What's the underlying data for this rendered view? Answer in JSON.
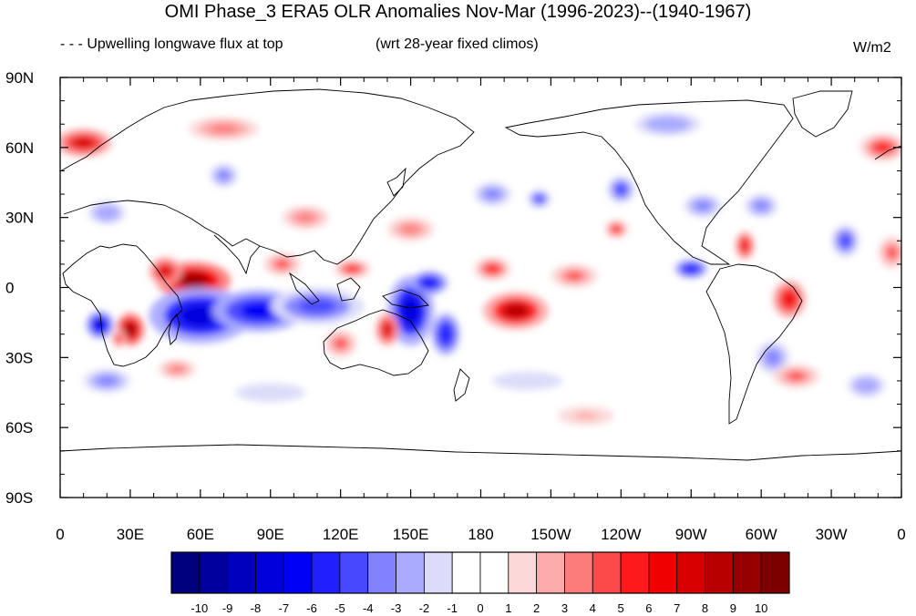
{
  "title": "OMI Phase_3 ERA5 OLR Anomalies Nov-Mar (1996-2023)--(1940-1967)",
  "subtitle_left": "- - - Upwelling longwave flux at top",
  "subtitle_mid": "(wrt 28-year fixed climos)",
  "units": "W/m2",
  "map": {
    "projection": "cylindrical equidistant",
    "lon_range": [
      0,
      360
    ],
    "lat_range": [
      -90,
      90
    ],
    "lat_ticks": [
      {
        "value": 90,
        "label": "90N"
      },
      {
        "value": 60,
        "label": "60N"
      },
      {
        "value": 30,
        "label": "30N"
      },
      {
        "value": 0,
        "label": "0"
      },
      {
        "value": -30,
        "label": "30S"
      },
      {
        "value": -60,
        "label": "60S"
      },
      {
        "value": -90,
        "label": "90S"
      }
    ],
    "lon_ticks": [
      {
        "value": 0,
        "label": "0"
      },
      {
        "value": 30,
        "label": "30E"
      },
      {
        "value": 60,
        "label": "60E"
      },
      {
        "value": 90,
        "label": "90E"
      },
      {
        "value": 120,
        "label": "120E"
      },
      {
        "value": 150,
        "label": "150E"
      },
      {
        "value": 180,
        "label": "180"
      },
      {
        "value": 210,
        "label": "150W"
      },
      {
        "value": 240,
        "label": "120W"
      },
      {
        "value": 270,
        "label": "90W"
      },
      {
        "value": 300,
        "label": "60W"
      },
      {
        "value": 330,
        "label": "30W"
      },
      {
        "value": 360,
        "label": "0"
      }
    ],
    "anomaly_blobs": [
      {
        "lon": 57,
        "lat": 3,
        "rx": 16,
        "ry": 8,
        "value": 9
      },
      {
        "lon": 45,
        "lat": 7,
        "rx": 7,
        "ry": 6,
        "value": 7
      },
      {
        "lon": 30,
        "lat": -18,
        "rx": 6,
        "ry": 7,
        "value": 9
      },
      {
        "lon": 25,
        "lat": -22,
        "rx": 3,
        "ry": 4,
        "value": 5
      },
      {
        "lon": 60,
        "lat": -12,
        "rx": 22,
        "ry": 12,
        "value": -8
      },
      {
        "lon": 85,
        "lat": -10,
        "rx": 20,
        "ry": 9,
        "value": -7
      },
      {
        "lon": 110,
        "lat": -8,
        "rx": 20,
        "ry": 8,
        "value": -5
      },
      {
        "lon": 17,
        "lat": -16,
        "rx": 6,
        "ry": 6,
        "value": -8
      },
      {
        "lon": 150,
        "lat": -10,
        "rx": 10,
        "ry": 15,
        "value": -8
      },
      {
        "lon": 158,
        "lat": 2,
        "rx": 8,
        "ry": 5,
        "value": -7
      },
      {
        "lon": 165,
        "lat": -20,
        "rx": 6,
        "ry": 9,
        "value": -6
      },
      {
        "lon": 140,
        "lat": -18,
        "rx": 5,
        "ry": 7,
        "value": 7
      },
      {
        "lon": 120,
        "lat": -24,
        "rx": 7,
        "ry": 6,
        "value": 4
      },
      {
        "lon": 195,
        "lat": -10,
        "rx": 14,
        "ry": 8,
        "value": 8
      },
      {
        "lon": 185,
        "lat": 8,
        "rx": 8,
        "ry": 5,
        "value": 5
      },
      {
        "lon": 125,
        "lat": 8,
        "rx": 8,
        "ry": 4,
        "value": 5
      },
      {
        "lon": 95,
        "lat": 10,
        "rx": 8,
        "ry": 5,
        "value": 4
      },
      {
        "lon": 220,
        "lat": 5,
        "rx": 10,
        "ry": 5,
        "value": 4
      },
      {
        "lon": 270,
        "lat": 8,
        "rx": 7,
        "ry": 4,
        "value": -6
      },
      {
        "lon": 312,
        "lat": -5,
        "rx": 7,
        "ry": 8,
        "value": 6
      },
      {
        "lon": 305,
        "lat": -30,
        "rx": 7,
        "ry": 7,
        "value": -4
      },
      {
        "lon": 315,
        "lat": -38,
        "rx": 10,
        "ry": 5,
        "value": 4
      },
      {
        "lon": 293,
        "lat": 18,
        "rx": 4,
        "ry": 6,
        "value": 6
      },
      {
        "lon": 336,
        "lat": 20,
        "rx": 6,
        "ry": 7,
        "value": -5
      },
      {
        "lon": 356,
        "lat": 15,
        "rx": 6,
        "ry": 7,
        "value": 4
      },
      {
        "lon": 238,
        "lat": 25,
        "rx": 5,
        "ry": 4,
        "value": 5
      },
      {
        "lon": 240,
        "lat": 42,
        "rx": 6,
        "ry": 6,
        "value": -5
      },
      {
        "lon": 275,
        "lat": 35,
        "rx": 8,
        "ry": 5,
        "value": -4
      },
      {
        "lon": 300,
        "lat": 35,
        "rx": 7,
        "ry": 5,
        "value": -4
      },
      {
        "lon": 10,
        "lat": 62,
        "rx": 12,
        "ry": 6,
        "value": 7
      },
      {
        "lon": 70,
        "lat": 48,
        "rx": 6,
        "ry": 5,
        "value": -4
      },
      {
        "lon": 185,
        "lat": 40,
        "rx": 8,
        "ry": 5,
        "value": -4
      },
      {
        "lon": 205,
        "lat": 38,
        "rx": 5,
        "ry": 4,
        "value": -5
      },
      {
        "lon": 352,
        "lat": 60,
        "rx": 10,
        "ry": 6,
        "value": 5
      },
      {
        "lon": 260,
        "lat": 70,
        "rx": 14,
        "ry": 5,
        "value": -3
      },
      {
        "lon": 70,
        "lat": 68,
        "rx": 15,
        "ry": 5,
        "value": 3
      },
      {
        "lon": 20,
        "lat": 32,
        "rx": 8,
        "ry": 5,
        "value": -3
      },
      {
        "lon": 105,
        "lat": 30,
        "rx": 10,
        "ry": 5,
        "value": 3
      },
      {
        "lon": 150,
        "lat": 25,
        "rx": 10,
        "ry": 5,
        "value": 3
      },
      {
        "lon": 345,
        "lat": -42,
        "rx": 8,
        "ry": 5,
        "value": -3
      },
      {
        "lon": 20,
        "lat": -40,
        "rx": 10,
        "ry": 5,
        "value": -4
      },
      {
        "lon": 90,
        "lat": -45,
        "rx": 15,
        "ry": 4,
        "value": -2
      },
      {
        "lon": 200,
        "lat": -40,
        "rx": 15,
        "ry": 4,
        "value": -2
      },
      {
        "lon": 225,
        "lat": -55,
        "rx": 12,
        "ry": 4,
        "value": 2
      },
      {
        "lon": 50,
        "lat": -35,
        "rx": 8,
        "ry": 4,
        "value": 3
      }
    ]
  },
  "colorbar": {
    "labels": [
      "-10",
      "-9",
      "-8",
      "-7",
      "-6",
      "-5",
      "-4",
      "-3",
      "-2",
      "-1",
      "0",
      "1",
      "2",
      "3",
      "4",
      "5",
      "6",
      "7",
      "8",
      "9",
      "10"
    ],
    "colors": [
      "#00007c",
      "#00009e",
      "#0000bd",
      "#0000dc",
      "#0000f6",
      "#2020ff",
      "#4848ff",
      "#8282ff",
      "#aaaaff",
      "#dcdcfa",
      "#ffffff",
      "#ffffff",
      "#fcd8d8",
      "#fcaaaa",
      "#fc7c7c",
      "#fc4a4a",
      "#fc1a1a",
      "#f20000",
      "#d80000",
      "#b80000",
      "#980000",
      "#7c0000"
    ]
  }
}
